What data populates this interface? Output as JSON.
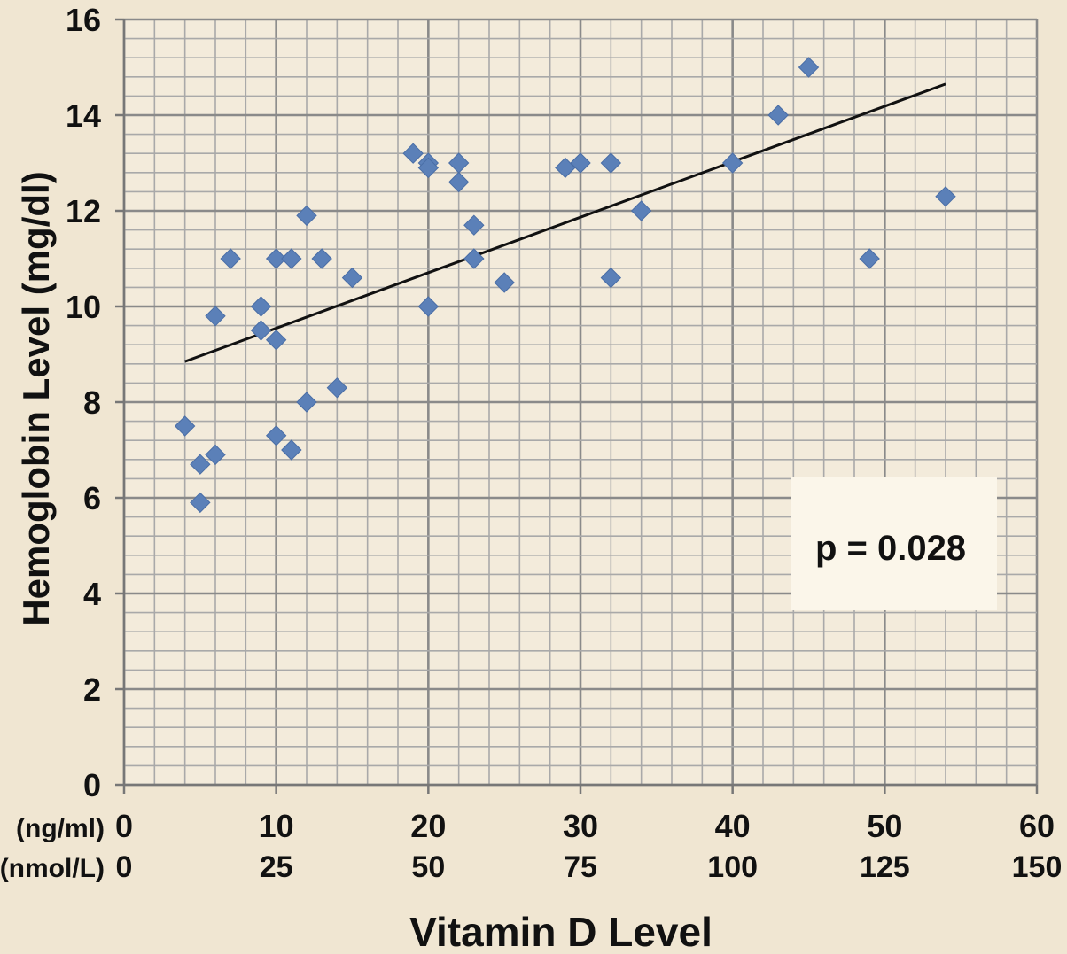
{
  "chart_data": {
    "type": "scatter",
    "xlabel": "Vitamin D Level",
    "ylabel": "Hemoglobin Level (mg/dl)",
    "x_units_primary": "(ng/ml)",
    "x_units_secondary": "(nmol/L)",
    "xlim": [
      0,
      60
    ],
    "ylim": [
      0,
      16
    ],
    "x_ticks": [
      0,
      10,
      20,
      30,
      40,
      50,
      60
    ],
    "x_ticks_secondary": [
      "0",
      "25",
      "50",
      "75",
      "100",
      "125",
      "150"
    ],
    "y_ticks": [
      0,
      2,
      4,
      6,
      8,
      10,
      12,
      14,
      16
    ],
    "grid": true,
    "marker": "diamond",
    "marker_color": "#5b80b8",
    "annotation": "p = 0.028",
    "trendline": {
      "x1": 4,
      "y1": 8.85,
      "x2": 54,
      "y2": 14.65
    },
    "points": [
      {
        "x": 4,
        "y": 7.5
      },
      {
        "x": 5,
        "y": 6.7
      },
      {
        "x": 5,
        "y": 5.9
      },
      {
        "x": 6,
        "y": 6.9
      },
      {
        "x": 6,
        "y": 9.8
      },
      {
        "x": 7,
        "y": 11.0
      },
      {
        "x": 9,
        "y": 10.0
      },
      {
        "x": 9,
        "y": 9.5
      },
      {
        "x": 10,
        "y": 9.3
      },
      {
        "x": 10,
        "y": 11.0
      },
      {
        "x": 10,
        "y": 7.3
      },
      {
        "x": 11,
        "y": 11.0
      },
      {
        "x": 11,
        "y": 7.0
      },
      {
        "x": 12,
        "y": 11.9
      },
      {
        "x": 12,
        "y": 8.0
      },
      {
        "x": 13,
        "y": 11.0
      },
      {
        "x": 14,
        "y": 8.3
      },
      {
        "x": 15,
        "y": 10.6
      },
      {
        "x": 19,
        "y": 13.2
      },
      {
        "x": 20,
        "y": 13.0
      },
      {
        "x": 20,
        "y": 12.9
      },
      {
        "x": 20,
        "y": 10.0
      },
      {
        "x": 22,
        "y": 13.0
      },
      {
        "x": 22,
        "y": 12.6
      },
      {
        "x": 23,
        "y": 11.7
      },
      {
        "x": 23,
        "y": 11.0
      },
      {
        "x": 25,
        "y": 10.5
      },
      {
        "x": 29,
        "y": 12.9
      },
      {
        "x": 30,
        "y": 13.0
      },
      {
        "x": 32,
        "y": 13.0
      },
      {
        "x": 32,
        "y": 10.6
      },
      {
        "x": 34,
        "y": 12.0
      },
      {
        "x": 40,
        "y": 13.0
      },
      {
        "x": 43,
        "y": 14.0
      },
      {
        "x": 45,
        "y": 15.0
      },
      {
        "x": 49,
        "y": 11.0
      },
      {
        "x": 54,
        "y": 12.3
      }
    ]
  }
}
